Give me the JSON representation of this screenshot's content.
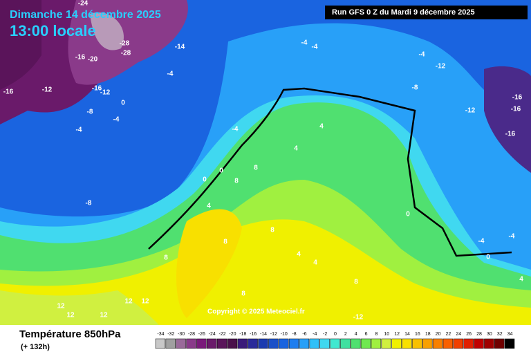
{
  "header": {
    "date": "Dimanche 14 décembre 2025",
    "time": "13:00 locale",
    "run": "Run GFS 0 Z du Mardi 9 décembre 2025"
  },
  "copyright": "Copyright © 2025 Meteociel.fr",
  "footer": {
    "title": "Température 850hPa",
    "lead": "(+ 132h)"
  },
  "map": {
    "contour_labels": [
      -24,
      -28,
      -28,
      -14,
      -16,
      -20,
      -16,
      -12,
      -16,
      -12,
      0,
      -8,
      -4,
      -4,
      -4,
      -4,
      -4,
      -4,
      -12,
      -8,
      -12,
      -16,
      -16,
      -16,
      -4,
      4,
      4,
      0,
      8,
      0,
      8,
      -8,
      4,
      8,
      8,
      8,
      4,
      4,
      8,
      8,
      12,
      12,
      12,
      12,
      12,
      -12,
      -4,
      -4,
      0,
      4,
      0
    ]
  },
  "scale": {
    "values": [
      -34,
      -32,
      -30,
      -28,
      -26,
      -24,
      -22,
      -20,
      -18,
      -16,
      -14,
      -12,
      -10,
      -8,
      -6,
      -4,
      -2,
      0,
      2,
      4,
      6,
      8,
      10,
      12,
      14,
      16,
      18,
      20,
      22,
      24,
      26,
      28,
      30,
      32,
      34
    ],
    "colors": [
      "#c8c8c8",
      "#a0a0a0",
      "#9a6a9a",
      "#8a3a8a",
      "#7a1a7a",
      "#6a1a6a",
      "#5a145a",
      "#4a104a",
      "#3a1a7a",
      "#2a2a9a",
      "#1a3ab0",
      "#1a50c8",
      "#1a64e0",
      "#1e7ef0",
      "#28a0f8",
      "#30c0f8",
      "#40d8f0",
      "#40e8d0",
      "#40e0a0",
      "#50e070",
      "#70e850",
      "#a0f040",
      "#d0f040",
      "#f0f000",
      "#f8e000",
      "#f8c000",
      "#f8a000",
      "#f88000",
      "#f86000",
      "#f04000",
      "#e02000",
      "#c00000",
      "#a00000",
      "#700000",
      "#000000"
    ]
  }
}
